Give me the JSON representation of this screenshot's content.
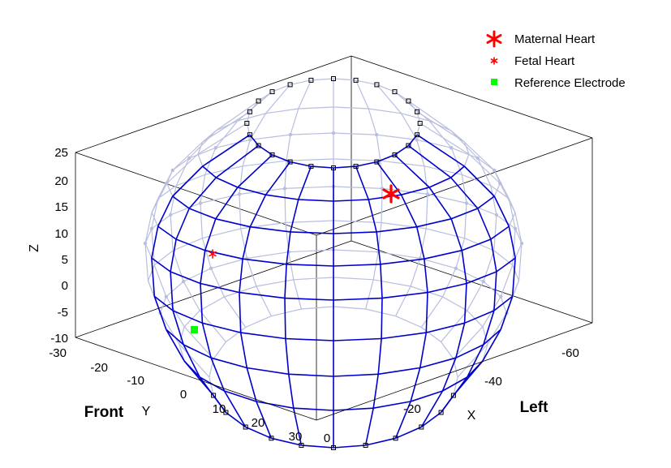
{
  "chart_data": {
    "type": "3d-mesh",
    "axes": {
      "x": {
        "label": "X",
        "ticks": [
          "-60",
          "-40",
          "-20",
          "0"
        ],
        "range": [
          -70,
          0
        ]
      },
      "y": {
        "label": "Y",
        "ticks": [
          "-30",
          "-20",
          "-10",
          "0",
          "10",
          "20",
          "30"
        ],
        "range": [
          -30,
          30
        ]
      },
      "z": {
        "label": "Z",
        "ticks": [
          "25",
          "20",
          "15",
          "10",
          "5",
          "0",
          "-5",
          "-10"
        ],
        "range": [
          -10,
          25
        ]
      }
    },
    "annotations": {
      "front": "Front",
      "left": "Left"
    },
    "legend": {
      "position": "top-right",
      "entries": [
        {
          "label": "Maternal Heart",
          "marker": "asterisk-large",
          "color": "#ff0000"
        },
        {
          "label": "Fetal Heart",
          "marker": "asterisk-small",
          "color": "#ff0000"
        },
        {
          "label": "Reference Electrode",
          "marker": "square",
          "color": "#00ff00"
        }
      ]
    },
    "points": [
      {
        "name": "Maternal Heart",
        "color": "#ff0000"
      },
      {
        "name": "Fetal Heart",
        "color": "#ff0000"
      },
      {
        "name": "Reference Electrode",
        "color": "#00ff00"
      }
    ],
    "mesh": {
      "color": "#0000cc",
      "hidden_color": "#b8bede",
      "node_color": "#000000"
    },
    "grid": false,
    "box": true
  }
}
